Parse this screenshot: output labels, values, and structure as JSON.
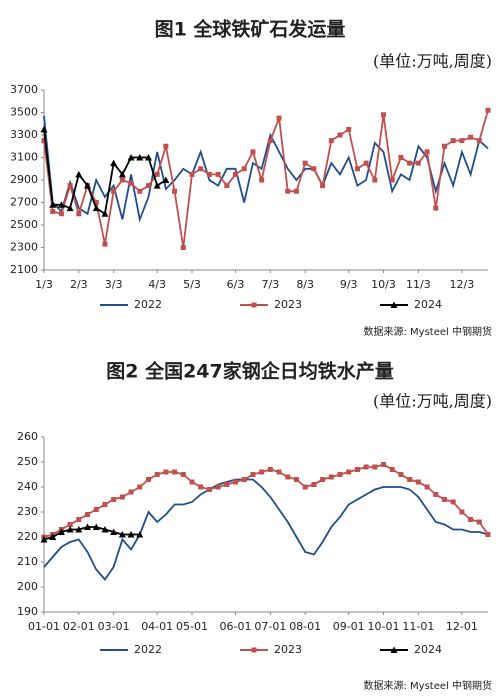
{
  "chart_data": [
    {
      "type": "line",
      "title": "图1 全球铁矿石发运量",
      "subtitle": "(单位:万吨,周度)",
      "source": "数据来源: Mysteel 中钢期货",
      "categories": [
        "1/3",
        null,
        null,
        null,
        "2/3",
        null,
        null,
        null,
        "3/3",
        null,
        null,
        null,
        null,
        "4/3",
        null,
        null,
        null,
        "5/3",
        null,
        null,
        null,
        null,
        "6/3",
        null,
        null,
        null,
        "7/3",
        null,
        null,
        null,
        "8/3",
        null,
        null,
        null,
        null,
        "9/3",
        null,
        null,
        null,
        "10/3",
        null,
        null,
        null,
        "11/3",
        null,
        null,
        null,
        null,
        "12/3",
        null,
        null,
        null
      ],
      "ylim": [
        2100,
        3700
      ],
      "yticks": [
        2100,
        2300,
        2500,
        2700,
        2900,
        3100,
        3300,
        3500,
        3700
      ],
      "series": [
        {
          "name": "2022",
          "color": "#1f4e8c",
          "marker": "none",
          "values": [
            3470,
            2700,
            2620,
            2880,
            2650,
            2600,
            2900,
            2750,
            2850,
            2550,
            2950,
            2550,
            2750,
            3150,
            2820,
            2900,
            3000,
            2950,
            3150,
            2900,
            2850,
            3000,
            3000,
            2700,
            3050,
            3000,
            3300,
            3150,
            3000,
            2900,
            3000,
            3000,
            2850,
            3050,
            2950,
            3100,
            2850,
            2900,
            3230,
            3150,
            2800,
            2950,
            2900,
            3200,
            3100,
            2800,
            3050,
            2850,
            3150,
            2950,
            3250,
            3180
          ]
        },
        {
          "name": "2023",
          "color": "#c0504d",
          "marker": "square",
          "values": [
            3250,
            2620,
            2600,
            2850,
            2600,
            2850,
            2700,
            2330,
            2800,
            2900,
            2870,
            2800,
            2850,
            2950,
            3200,
            2800,
            2300,
            2950,
            3000,
            2950,
            2950,
            2850,
            2950,
            3000,
            3150,
            2900,
            3250,
            3450,
            2800,
            2800,
            3050,
            3000,
            2850,
            3250,
            3300,
            3350,
            3000,
            3050,
            2900,
            3480,
            2900,
            3100,
            3050,
            3050,
            3150,
            2650,
            3200,
            3250,
            3250,
            3280,
            3250,
            3520
          ]
        },
        {
          "name": "2024",
          "color": "#000000",
          "marker": "triangle",
          "values": [
            3350,
            2680,
            2680,
            2650,
            2950,
            2850,
            2650,
            2600,
            3050,
            2950,
            3100,
            3100,
            3100,
            2850,
            2900,
            null,
            null,
            null,
            null,
            null,
            null,
            null,
            null,
            null,
            null,
            null,
            null,
            null,
            null,
            null,
            null,
            null,
            null,
            null,
            null,
            null,
            null,
            null,
            null,
            null,
            null,
            null,
            null,
            null,
            null,
            null,
            null,
            null,
            null,
            null,
            null,
            null
          ]
        }
      ]
    },
    {
      "type": "line",
      "title": "图2 全国247家钢企日均铁水产量",
      "subtitle": "(单位:万吨,周度)",
      "source": "数据来源: Mysteel 中钢期货",
      "categories": [
        "01-01",
        null,
        null,
        null,
        "02-01",
        null,
        null,
        null,
        "03-01",
        null,
        null,
        null,
        null,
        "04-01",
        null,
        null,
        null,
        "05-01",
        null,
        null,
        null,
        null,
        "06-01",
        null,
        null,
        null,
        "07-01",
        null,
        null,
        null,
        "08-01",
        null,
        null,
        null,
        null,
        "09-01",
        null,
        null,
        null,
        "10-01",
        null,
        null,
        null,
        "11-01",
        null,
        null,
        null,
        null,
        "12-01",
        null,
        null,
        null
      ],
      "ylim": [
        190,
        260
      ],
      "yticks": [
        190,
        200,
        210,
        220,
        230,
        240,
        250,
        260
      ],
      "series": [
        {
          "name": "2022",
          "color": "#1f4e8c",
          "marker": "none",
          "values": [
            208,
            212,
            216,
            218,
            219,
            214,
            207,
            203,
            208,
            219,
            215,
            221,
            230,
            226,
            229,
            233,
            233,
            234,
            237,
            239,
            241,
            242,
            243,
            243,
            243,
            240,
            236,
            231,
            226,
            220,
            214,
            213,
            218,
            224,
            228,
            233,
            235,
            237,
            239,
            240,
            240,
            240,
            239,
            236,
            231,
            226,
            225,
            223,
            223,
            222,
            222,
            221
          ]
        },
        {
          "name": "2023",
          "color": "#c0504d",
          "marker": "square",
          "values": [
            220,
            221,
            223,
            225,
            227,
            229,
            231,
            233,
            235,
            236,
            238,
            240,
            243,
            245,
            246,
            246,
            245,
            242,
            240,
            239,
            240,
            241,
            242,
            243,
            245,
            246,
            247,
            246,
            244,
            243,
            240,
            241,
            243,
            244,
            245,
            246,
            247,
            248,
            248,
            249,
            247,
            245,
            243,
            242,
            240,
            237,
            235,
            234,
            230,
            227,
            226,
            221
          ]
        },
        {
          "name": "2024",
          "color": "#000000",
          "marker": "triangle",
          "values": [
            219,
            220,
            222,
            223,
            223,
            224,
            224,
            223,
            222,
            221,
            221,
            221,
            null,
            null,
            null,
            null,
            null,
            null,
            null,
            null,
            null,
            null,
            null,
            null,
            null,
            null,
            null,
            null,
            null,
            null,
            null,
            null,
            null,
            null,
            null,
            null,
            null,
            null,
            null,
            null,
            null,
            null,
            null,
            null,
            null,
            null,
            null,
            null,
            null,
            null,
            null,
            null
          ]
        }
      ]
    }
  ]
}
